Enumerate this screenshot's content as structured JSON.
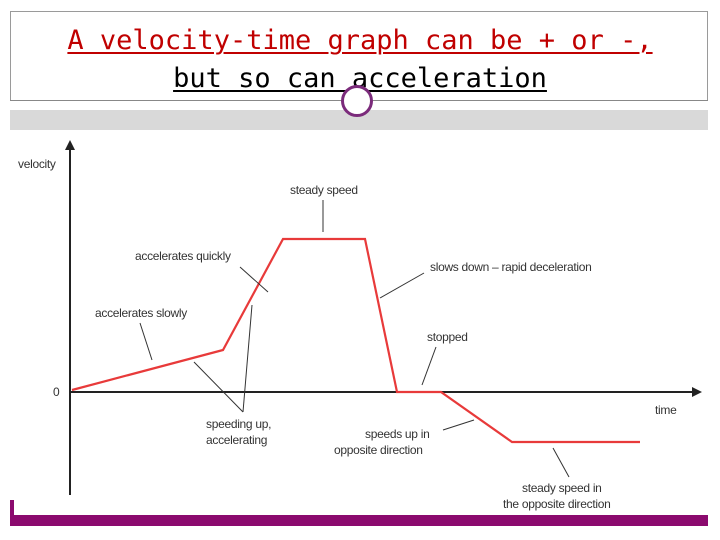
{
  "slide": {
    "title_line1": "A velocity-time graph can be + or -,",
    "title_line2": "but so can acceleration"
  },
  "diagram": {
    "y_axis_label": "velocity",
    "x_axis_label": "time",
    "origin_label": "0",
    "annotations": {
      "steady_speed": "steady speed",
      "accelerates_quickly": "accelerates quickly",
      "accelerates_slowly": "accelerates slowly",
      "slows_down": "slows down – rapid deceleration",
      "stopped": "stopped",
      "speeding_up_1": "speeding up,",
      "speeding_up_2": "accelerating",
      "opposite_1": "speeds up in",
      "opposite_2": "opposite direction",
      "steady_opposite_1": "steady speed in",
      "steady_opposite_2": "the opposite direction"
    },
    "colors": {
      "curve": "#e83a3a",
      "axis": "#222222",
      "title": "#c00000",
      "accent": "#8b0a6e"
    }
  }
}
